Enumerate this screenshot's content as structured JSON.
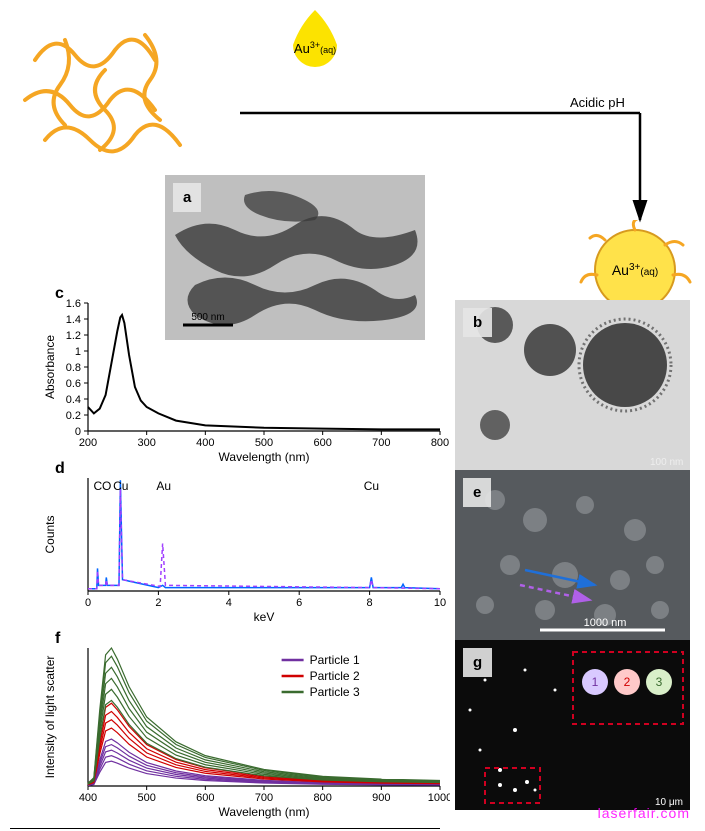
{
  "scheme": {
    "droplet_label": "Au³⁺(aq)",
    "arrow_label": "Acidic pH",
    "product_label": "Au³⁺(aq)",
    "polymer_color": "#f5a623",
    "droplet_color": "#fce300",
    "product_fill": "#ffe24a",
    "product_stroke": "#d79a1e"
  },
  "panel_a": {
    "label": "a",
    "scale_text": "500 nm",
    "bg": "#bfbfbf",
    "dark": "#3a3a3a"
  },
  "panel_b": {
    "label": "b",
    "scale_text": "100 nm",
    "bg": "#d8d8d8",
    "dark": "#2f2f2f"
  },
  "panel_c": {
    "label": "c",
    "type": "line",
    "xlabel": "Wavelength (nm)",
    "ylabel": "Absorbance",
    "xlim": [
      200,
      800
    ],
    "ylim": [
      0,
      1.6
    ],
    "xticks": [
      200,
      300,
      400,
      500,
      600,
      700,
      800
    ],
    "yticks": [
      0,
      0.2,
      0.4,
      0.6,
      0.8,
      1.0,
      1.2,
      1.4,
      1.6
    ],
    "line_color": "#000000",
    "line_width": 2,
    "data": [
      [
        200,
        0.3
      ],
      [
        210,
        0.22
      ],
      [
        220,
        0.28
      ],
      [
        230,
        0.45
      ],
      [
        240,
        0.85
      ],
      [
        250,
        1.25
      ],
      [
        255,
        1.42
      ],
      [
        258,
        1.45
      ],
      [
        262,
        1.35
      ],
      [
        270,
        0.95
      ],
      [
        280,
        0.55
      ],
      [
        290,
        0.38
      ],
      [
        300,
        0.3
      ],
      [
        320,
        0.22
      ],
      [
        350,
        0.13
      ],
      [
        400,
        0.07
      ],
      [
        500,
        0.04
      ],
      [
        600,
        0.03
      ],
      [
        700,
        0.02
      ],
      [
        800,
        0.02
      ]
    ]
  },
  "panel_d": {
    "label": "d",
    "type": "line",
    "xlabel": "keV",
    "ylabel": "Counts",
    "xlim": [
      0,
      10
    ],
    "ylim": [
      0,
      1
    ],
    "xticks": [
      0,
      2,
      4,
      6,
      8,
      10
    ],
    "peak_labels": [
      {
        "text": "C",
        "x": 0.28,
        "color": "#000"
      },
      {
        "text": "O",
        "x": 0.53,
        "color": "#000"
      },
      {
        "text": "Cu",
        "x": 0.93,
        "color": "#000"
      },
      {
        "text": "Au",
        "x": 2.15,
        "color": "#000"
      },
      {
        "text": "Cu",
        "x": 8.05,
        "color": "#000"
      }
    ],
    "series": [
      {
        "color": "#0066ff",
        "width": 1.5,
        "data": [
          [
            0,
            0.02
          ],
          [
            0.25,
            0.02
          ],
          [
            0.27,
            0.2
          ],
          [
            0.3,
            0.05
          ],
          [
            0.5,
            0.05
          ],
          [
            0.52,
            0.12
          ],
          [
            0.55,
            0.05
          ],
          [
            0.88,
            0.05
          ],
          [
            0.92,
            0.98
          ],
          [
            0.98,
            0.1
          ],
          [
            2.0,
            0.03
          ],
          [
            2.12,
            0.05
          ],
          [
            2.2,
            0.03
          ],
          [
            8.0,
            0.03
          ],
          [
            8.05,
            0.12
          ],
          [
            8.1,
            0.03
          ],
          [
            8.9,
            0.03
          ],
          [
            8.95,
            0.06
          ],
          [
            9.0,
            0.03
          ],
          [
            10,
            0.02
          ]
        ]
      },
      {
        "color": "#a040ff",
        "width": 1.5,
        "dash": "4 3",
        "data": [
          [
            0,
            0.02
          ],
          [
            0.25,
            0.02
          ],
          [
            0.27,
            0.18
          ],
          [
            0.3,
            0.05
          ],
          [
            0.5,
            0.05
          ],
          [
            0.52,
            0.1
          ],
          [
            0.55,
            0.05
          ],
          [
            0.88,
            0.05
          ],
          [
            0.92,
            0.9
          ],
          [
            0.98,
            0.1
          ],
          [
            2.05,
            0.04
          ],
          [
            2.12,
            0.42
          ],
          [
            2.2,
            0.05
          ],
          [
            8.0,
            0.03
          ],
          [
            8.05,
            0.1
          ],
          [
            8.1,
            0.03
          ],
          [
            10,
            0.02
          ]
        ]
      }
    ]
  },
  "panel_e": {
    "label": "e",
    "scale_text": "1000 nm",
    "bg": "#565a5e",
    "blob": "#7c8084",
    "arrow_solid_color": "#1f6fd8",
    "arrow_dash_color": "#b060e8"
  },
  "panel_f": {
    "label": "f",
    "type": "line",
    "xlabel": "Wavelength (nm)",
    "ylabel": "Intensity of light scatter",
    "xlim": [
      400,
      1000
    ],
    "ylim": [
      0,
      1
    ],
    "xticks": [
      400,
      500,
      600,
      700,
      800,
      900,
      1000
    ],
    "legend": [
      {
        "label": "Particle 1",
        "color": "#7030a0"
      },
      {
        "label": "Particle 2",
        "color": "#d00000"
      },
      {
        "label": "Particle 3",
        "color": "#3a6b2f"
      }
    ],
    "curves": {
      "p1": {
        "color": "#7030a0",
        "scales": [
          0.18,
          0.22,
          0.26,
          0.3,
          0.34
        ]
      },
      "p2": {
        "color": "#d00000",
        "scales": [
          0.42,
          0.48,
          0.54,
          0.6
        ]
      },
      "p3": {
        "color": "#3a6b2f",
        "scales": [
          0.62,
          0.7,
          0.78,
          0.86,
          0.94,
          1.0
        ]
      }
    },
    "base_curve": [
      [
        400,
        0.02
      ],
      [
        410,
        0.06
      ],
      [
        420,
        0.55
      ],
      [
        430,
        0.95
      ],
      [
        440,
        1.0
      ],
      [
        450,
        0.92
      ],
      [
        470,
        0.72
      ],
      [
        500,
        0.5
      ],
      [
        550,
        0.32
      ],
      [
        600,
        0.22
      ],
      [
        700,
        0.12
      ],
      [
        800,
        0.07
      ],
      [
        900,
        0.05
      ],
      [
        1000,
        0.04
      ]
    ]
  },
  "panel_g": {
    "label": "g",
    "scale_text": "10 μm",
    "bg": "#0b0b0b",
    "box_color": "#d00020",
    "circles": [
      {
        "n": "1",
        "fill": "#d9c9ff"
      },
      {
        "n": "2",
        "fill": "#ffc9c9"
      },
      {
        "n": "3",
        "fill": "#d9efc9"
      }
    ]
  },
  "watermark": "laserfair.com"
}
